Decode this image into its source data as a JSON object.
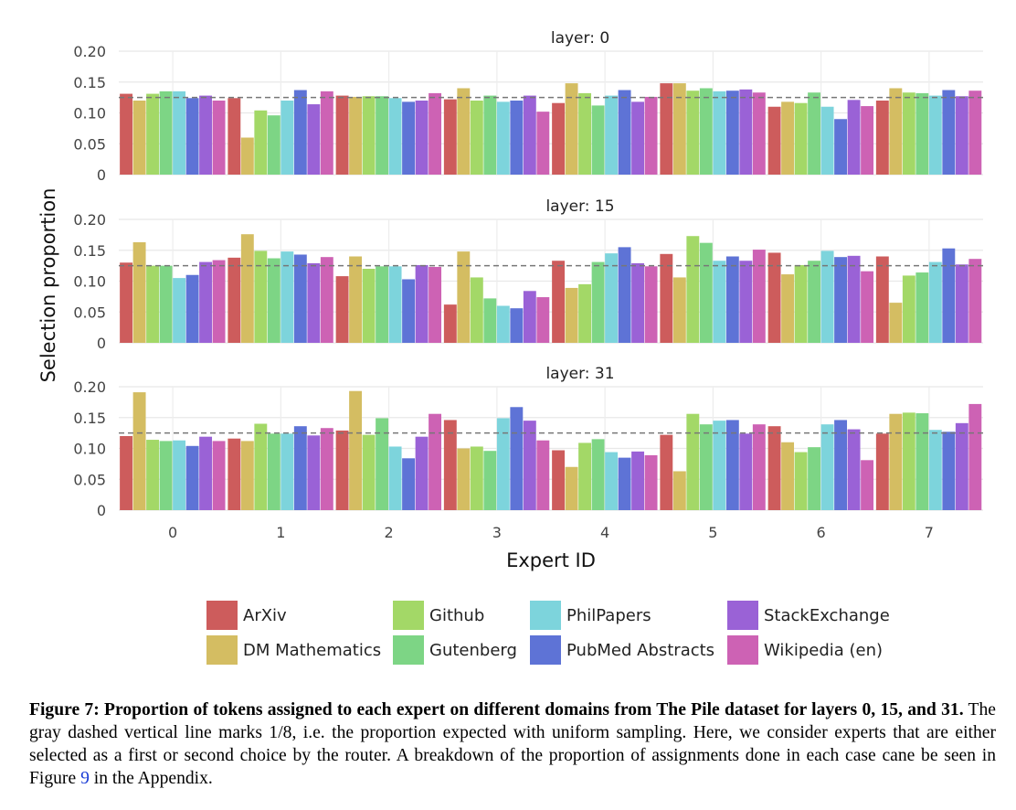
{
  "chart_data": {
    "type": "bar",
    "ylabel": "Selection proportion",
    "xlabel": "Expert ID",
    "categories": [
      "0",
      "1",
      "2",
      "3",
      "4",
      "5",
      "6",
      "7"
    ],
    "y_ticks": [
      "0",
      "0.05",
      "0.10",
      "0.15",
      "0.20"
    ],
    "ylim": [
      0,
      0.2
    ],
    "reference_line": 0.125,
    "grid": true,
    "legend_position": "bottom",
    "series_colors": [
      "#cd5c5c",
      "#d4bd62",
      "#a3d867",
      "#7dd585",
      "#7dd4dc",
      "#5e73d6",
      "#9a62d6",
      "#cd62b4"
    ],
    "series_names": [
      "ArXiv",
      "DM Mathematics",
      "Github",
      "Gutenberg",
      "PhilPapers",
      "PubMed Abstracts",
      "StackExchange",
      "Wikipedia (en)"
    ],
    "panels": [
      {
        "title": "layer: 0",
        "series": [
          {
            "name": "ArXiv",
            "values": [
              0.131,
              0.124,
              0.128,
              0.122,
              0.116,
              0.148,
              0.11,
              0.12
            ]
          },
          {
            "name": "DM Mathematics",
            "values": [
              0.12,
              0.06,
              0.126,
              0.14,
              0.148,
              0.148,
              0.118,
              0.14
            ]
          },
          {
            "name": "Github",
            "values": [
              0.131,
              0.104,
              0.127,
              0.12,
              0.132,
              0.136,
              0.116,
              0.133
            ]
          },
          {
            "name": "Gutenberg",
            "values": [
              0.135,
              0.096,
              0.127,
              0.128,
              0.112,
              0.14,
              0.133,
              0.132
            ]
          },
          {
            "name": "PhilPapers",
            "values": [
              0.135,
              0.12,
              0.124,
              0.118,
              0.128,
              0.135,
              0.11,
              0.128
            ]
          },
          {
            "name": "PubMed Abstracts",
            "values": [
              0.124,
              0.137,
              0.118,
              0.12,
              0.137,
              0.136,
              0.09,
              0.137
            ]
          },
          {
            "name": "StackExchange",
            "values": [
              0.128,
              0.114,
              0.12,
              0.128,
              0.118,
              0.138,
              0.121,
              0.127
            ]
          },
          {
            "name": "Wikipedia (en)",
            "values": [
              0.12,
              0.135,
              0.132,
              0.102,
              0.126,
              0.133,
              0.111,
              0.136
            ]
          }
        ]
      },
      {
        "title": "layer: 15",
        "series": [
          {
            "name": "ArXiv",
            "values": [
              0.13,
              0.138,
              0.108,
              0.062,
              0.133,
              0.144,
              0.146,
              0.14
            ]
          },
          {
            "name": "DM Mathematics",
            "values": [
              0.163,
              0.176,
              0.14,
              0.148,
              0.089,
              0.106,
              0.111,
              0.065
            ]
          },
          {
            "name": "Github",
            "values": [
              0.125,
              0.149,
              0.12,
              0.106,
              0.095,
              0.173,
              0.126,
              0.109
            ]
          },
          {
            "name": "Gutenberg",
            "values": [
              0.125,
              0.137,
              0.124,
              0.072,
              0.131,
              0.162,
              0.133,
              0.114
            ]
          },
          {
            "name": "PhilPapers",
            "values": [
              0.105,
              0.148,
              0.124,
              0.06,
              0.145,
              0.133,
              0.149,
              0.131
            ]
          },
          {
            "name": "PubMed Abstracts",
            "values": [
              0.11,
              0.143,
              0.103,
              0.056,
              0.155,
              0.14,
              0.139,
              0.153
            ]
          },
          {
            "name": "StackExchange",
            "values": [
              0.131,
              0.129,
              0.126,
              0.084,
              0.129,
              0.133,
              0.141,
              0.127
            ]
          },
          {
            "name": "Wikipedia (en)",
            "values": [
              0.134,
              0.139,
              0.123,
              0.074,
              0.124,
              0.151,
              0.116,
              0.136
            ]
          }
        ]
      },
      {
        "title": "layer: 31",
        "series": [
          {
            "name": "ArXiv",
            "values": [
              0.12,
              0.116,
              0.129,
              0.146,
              0.097,
              0.122,
              0.136,
              0.124
            ]
          },
          {
            "name": "DM Mathematics",
            "values": [
              0.191,
              0.112,
              0.193,
              0.1,
              0.07,
              0.063,
              0.11,
              0.156
            ]
          },
          {
            "name": "Github",
            "values": [
              0.114,
              0.14,
              0.122,
              0.103,
              0.109,
              0.156,
              0.094,
              0.158
            ]
          },
          {
            "name": "Gutenberg",
            "values": [
              0.112,
              0.124,
              0.149,
              0.096,
              0.115,
              0.139,
              0.102,
              0.157
            ]
          },
          {
            "name": "PhilPapers",
            "values": [
              0.113,
              0.124,
              0.103,
              0.149,
              0.094,
              0.145,
              0.139,
              0.13
            ]
          },
          {
            "name": "PubMed Abstracts",
            "values": [
              0.104,
              0.136,
              0.084,
              0.167,
              0.085,
              0.146,
              0.146,
              0.127
            ]
          },
          {
            "name": "StackExchange",
            "values": [
              0.119,
              0.121,
              0.119,
              0.145,
              0.095,
              0.124,
              0.131,
              0.141
            ]
          },
          {
            "name": "Wikipedia (en)",
            "values": [
              0.112,
              0.133,
              0.156,
              0.113,
              0.089,
              0.139,
              0.081,
              0.172
            ]
          }
        ]
      }
    ]
  },
  "legend": {
    "items": [
      {
        "label": "ArXiv",
        "color": "#cd5c5c"
      },
      {
        "label": "DM Mathematics",
        "color": "#d4bd62"
      },
      {
        "label": "Github",
        "color": "#a3d867"
      },
      {
        "label": "Gutenberg",
        "color": "#7dd585"
      },
      {
        "label": "PhilPapers",
        "color": "#7dd4dc"
      },
      {
        "label": "PubMed Abstracts",
        "color": "#5e73d6"
      },
      {
        "label": "StackExchange",
        "color": "#9a62d6"
      },
      {
        "label": "Wikipedia (en)",
        "color": "#cd62b4"
      }
    ]
  },
  "caption": {
    "bold": "Figure 7: Proportion of tokens assigned to each expert on different domains from The Pile dataset for layers 0, 15, and 31.",
    "text_1": " The gray dashed vertical line marks 1/8, i.e. the proportion expected with uniform sampling. Here, we consider experts that are either selected as a first or second choice by the router. A breakdown of the proportion of assignments done in each case cane be seen in Figure ",
    "ref": "9",
    "text_2": " in the Appendix."
  }
}
